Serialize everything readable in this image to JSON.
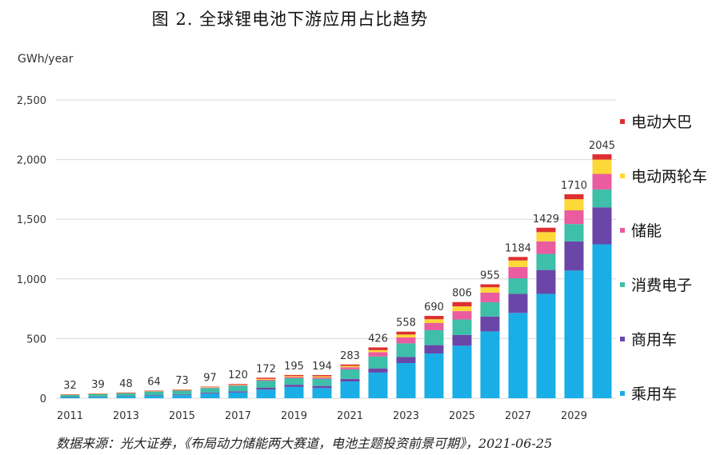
{
  "title": "图 2.  全球锂电池下游应用占比趋势",
  "unit_label": "GWh/year",
  "source": "数据来源：光大证券，《布局动力储能两大赛道，电池主题投资前景可期》，2021-06-25",
  "colors": {
    "乘用车": "#1aaee6",
    "商用车": "#6a46a8",
    "消费电子": "#3dbfa9",
    "储能": "#ea5c9f",
    "电动两轮车": "#fcd838",
    "电动大巴": "#dd3030"
  },
  "chart_data": {
    "type": "bar",
    "stacked": true,
    "categories": [
      "2011",
      "2012",
      "2013",
      "2014",
      "2015",
      "2016",
      "2017",
      "2018",
      "2019",
      "2020",
      "2021",
      "2022",
      "2023",
      "2024",
      "2025",
      "2026",
      "2027",
      "2028",
      "2029",
      "2030"
    ],
    "tick_labels": [
      "2011",
      "2013",
      "2015",
      "2017",
      "2019",
      "2021",
      "2023",
      "2025",
      "2027",
      "2029"
    ],
    "ylim": [
      0,
      2500
    ],
    "yticks": [
      "0",
      "500",
      "1,000",
      "1,500",
      "2,000",
      "2,500"
    ],
    "ytick_values": [
      0,
      500,
      1000,
      1500,
      2000,
      2500
    ],
    "ylabel": "GWh/year",
    "grid": true,
    "legend_position": "right",
    "totals": [
      32,
      39,
      48,
      64,
      73,
      97,
      120,
      172,
      195,
      194,
      283,
      426,
      558,
      690,
      806,
      955,
      1184,
      1429,
      1710,
      2045
    ],
    "series": [
      {
        "name": "乘用车",
        "values": [
          8,
          10,
          14,
          20,
          25,
          38,
          48,
          72,
          95,
          85,
          140,
          215,
          295,
          375,
          440,
          560,
          715,
          875,
          1070,
          1290
        ]
      },
      {
        "name": "商用车",
        "values": [
          2,
          2,
          3,
          5,
          6,
          8,
          10,
          15,
          18,
          18,
          22,
          35,
          50,
          70,
          90,
          125,
          160,
          200,
          245,
          310
        ]
      },
      {
        "name": "消费电子",
        "values": [
          20,
          24,
          27,
          32,
          33,
          40,
          47,
          60,
          55,
          60,
          80,
          100,
          115,
          125,
          130,
          120,
          130,
          135,
          145,
          150
        ]
      },
      {
        "name": "储能",
        "values": [
          0,
          0,
          1,
          2,
          3,
          3,
          5,
          8,
          10,
          12,
          18,
          36,
          50,
          60,
          70,
          80,
          95,
          105,
          115,
          130
        ]
      },
      {
        "name": "电动两轮车",
        "values": [
          1,
          1,
          1,
          2,
          3,
          4,
          5,
          7,
          8,
          9,
          11,
          17,
          24,
          32,
          40,
          45,
          55,
          77,
          93,
          120
        ]
      },
      {
        "name": "电动大巴",
        "values": [
          1,
          2,
          2,
          3,
          3,
          4,
          5,
          10,
          9,
          10,
          12,
          23,
          24,
          28,
          36,
          25,
          29,
          37,
          42,
          45
        ]
      }
    ],
    "legend_order": [
      "电动大巴",
      "电动两轮车",
      "储能",
      "消费电子",
      "商用车",
      "乘用车"
    ]
  }
}
